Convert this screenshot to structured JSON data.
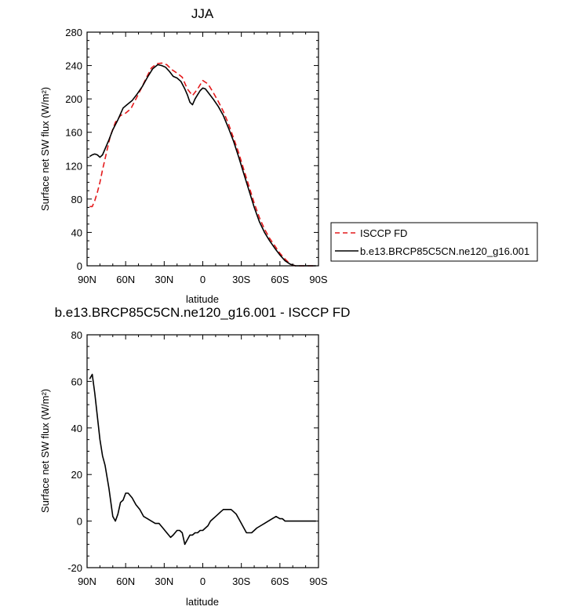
{
  "chart_data": [
    {
      "type": "line",
      "title": "JJA",
      "xlabel": "latitude",
      "ylabel": "Surface net SW flux (W/m²)",
      "xlim": [
        90,
        -90
      ],
      "ylim": [
        0,
        280
      ],
      "x_ticks": [
        "90N",
        "60N",
        "30N",
        "0",
        "30S",
        "60S",
        "90S"
      ],
      "x_tick_values": [
        90,
        60,
        30,
        0,
        -30,
        -60,
        -90
      ],
      "y_ticks": [
        0,
        40,
        80,
        120,
        160,
        200,
        240,
        280
      ],
      "legend_location": "right",
      "series": [
        {
          "name": "ISCCP FD",
          "color": "#e41a1c",
          "style": "dashed",
          "x": [
            88,
            86,
            84,
            82,
            80,
            78,
            75,
            72,
            68,
            64,
            60,
            56,
            52,
            48,
            44,
            40,
            36,
            32,
            28,
            24,
            20,
            16,
            12,
            8,
            4,
            0,
            -4,
            -8,
            -12,
            -16,
            -20,
            -24,
            -28,
            -32,
            -36,
            -40,
            -44,
            -48,
            -52,
            -56,
            -60,
            -64,
            -68,
            -72,
            -76,
            -80,
            -84,
            -88
          ],
          "y": [
            71,
            71,
            78,
            88,
            100,
            115,
            135,
            155,
            172,
            180,
            183,
            188,
            200,
            212,
            225,
            237,
            242,
            243,
            241,
            235,
            231,
            226,
            212,
            204,
            212,
            222,
            218,
            208,
            197,
            185,
            170,
            153,
            135,
            115,
            95,
            75,
            58,
            44,
            33,
            24,
            15,
            8,
            2,
            0,
            0,
            0,
            0,
            0
          ]
        },
        {
          "name": "b.e13.BRCP85C5CN.ne120_g16.001",
          "color": "#000000",
          "style": "solid",
          "x": [
            88,
            86,
            84,
            82,
            80,
            78,
            76,
            73,
            70,
            66,
            62,
            59,
            55,
            51,
            47,
            43,
            39,
            35,
            32,
            29,
            26,
            23,
            20,
            17,
            14,
            12,
            10,
            8,
            6,
            4,
            2,
            0,
            -2,
            -4,
            -8,
            -12,
            -16,
            -20,
            -24,
            -28,
            -32,
            -36,
            -40,
            -44,
            -48,
            -52,
            -56,
            -60,
            -64,
            -68,
            -72,
            -76,
            -80,
            -84,
            -88
          ],
          "y": [
            131,
            133,
            134,
            133,
            130,
            133,
            140,
            151,
            163,
            175,
            189,
            193,
            198,
            206,
            215,
            226,
            236,
            241,
            240,
            238,
            233,
            227,
            225,
            221,
            212,
            205,
            196,
            193,
            200,
            205,
            210,
            213,
            212,
            208,
            200,
            191,
            180,
            165,
            149,
            130,
            110,
            90,
            70,
            53,
            40,
            30,
            21,
            13,
            6,
            2,
            0,
            0,
            0,
            0,
            0
          ]
        }
      ]
    },
    {
      "type": "line",
      "title": "b.e13.BRCP85C5CN.ne120_g16.001 - ISCCP FD",
      "xlabel": "latitude",
      "ylabel": "Surface net SW flux (W/m²)",
      "xlim": [
        90,
        -90
      ],
      "ylim": [
        -20,
        80
      ],
      "x_ticks": [
        "90N",
        "60N",
        "30N",
        "0",
        "30S",
        "60S",
        "90S"
      ],
      "x_tick_values": [
        90,
        60,
        30,
        0,
        -30,
        -60,
        -90
      ],
      "y_ticks": [
        -20,
        0,
        20,
        40,
        60,
        80
      ],
      "series": [
        {
          "name": "",
          "color": "#000000",
          "style": "solid",
          "x": [
            88,
            86,
            84,
            82,
            80,
            78,
            76,
            73,
            70,
            68,
            66,
            64,
            62,
            60,
            58,
            55,
            52,
            49,
            46,
            43,
            40,
            37,
            34,
            31,
            28,
            25,
            23,
            20,
            18,
            16,
            14,
            12,
            10,
            8,
            6,
            4,
            2,
            0,
            -2,
            -4,
            -6,
            -8,
            -10,
            -12,
            -14,
            -16,
            -18,
            -20,
            -22,
            -24,
            -26,
            -28,
            -30,
            -32,
            -34,
            -36,
            -38,
            -40,
            -42,
            -45,
            -48,
            -51,
            -54,
            -57,
            -60,
            -62,
            -64,
            -66,
            -68,
            -70,
            -72,
            -74,
            -76,
            -78,
            -80,
            -82,
            -84,
            -86,
            -88
          ],
          "y": [
            61,
            63,
            55,
            45,
            35,
            28,
            24,
            14,
            2,
            0,
            3,
            8,
            9,
            12,
            12,
            10,
            7,
            5,
            2,
            1,
            0,
            -1,
            -1,
            -3,
            -5,
            -7,
            -6,
            -4,
            -4,
            -5,
            -10,
            -8,
            -6,
            -6,
            -5,
            -5,
            -4,
            -4,
            -3,
            -2,
            0,
            1,
            2,
            3,
            4,
            5,
            5,
            5,
            5,
            4,
            3,
            1,
            -1,
            -3,
            -5,
            -5,
            -5,
            -4,
            -3,
            -2,
            -1,
            0,
            1,
            2,
            1,
            1,
            0,
            0,
            0,
            0,
            0,
            0,
            0,
            0,
            0,
            0,
            0,
            0,
            0
          ]
        }
      ]
    }
  ]
}
